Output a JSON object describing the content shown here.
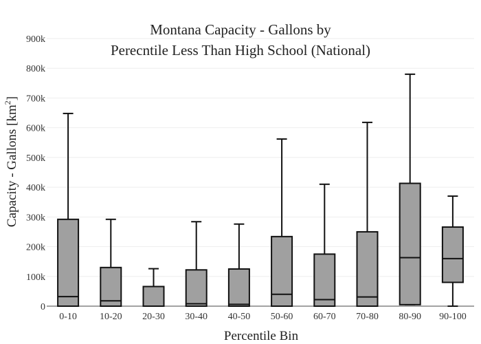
{
  "chart_data": {
    "type": "box",
    "title_lines": [
      "Montana Capacity - Gallons by",
      "Perecntile Less Than High School (National)"
    ],
    "xlabel": "Percentile Bin",
    "ylabel_main": "Capacity - Gallons  [km",
    "ylabel_sup": "2",
    "ylabel_end": "]",
    "ylim": [
      0,
      900000
    ],
    "yticks": [
      0,
      100000,
      200000,
      300000,
      400000,
      500000,
      600000,
      700000,
      800000,
      900000
    ],
    "ytick_labels": [
      "0",
      "100k",
      "200k",
      "300k",
      "400k",
      "500k",
      "600k",
      "700k",
      "800k",
      "900k"
    ],
    "grid": true,
    "box_fill": "#a0a0a0",
    "box_stroke": "#111111",
    "categories": [
      "0-10",
      "10-20",
      "20-30",
      "30-40",
      "40-50",
      "50-60",
      "60-70",
      "70-80",
      "80-90",
      "90-100"
    ],
    "boxes": [
      {
        "min": 0,
        "q1": 0,
        "median": 32000,
        "q3": 292000,
        "max": 648000
      },
      {
        "min": 0,
        "q1": 0,
        "median": 18000,
        "q3": 130000,
        "max": 292000
      },
      {
        "min": 0,
        "q1": 0,
        "median": 0,
        "q3": 66000,
        "max": 126000
      },
      {
        "min": 0,
        "q1": 0,
        "median": 8000,
        "q3": 122000,
        "max": 284000
      },
      {
        "min": 0,
        "q1": 0,
        "median": 6000,
        "q3": 125000,
        "max": 276000
      },
      {
        "min": 0,
        "q1": 0,
        "median": 40000,
        "q3": 234000,
        "max": 562000
      },
      {
        "min": 0,
        "q1": 0,
        "median": 22000,
        "q3": 175000,
        "max": 410000
      },
      {
        "min": 0,
        "q1": 0,
        "median": 31000,
        "q3": 250000,
        "max": 618000
      },
      {
        "min": 5000,
        "q1": 5000,
        "median": 163000,
        "q3": 413000,
        "max": 780000
      },
      {
        "min": 0,
        "q1": 80000,
        "median": 160000,
        "q3": 266000,
        "max": 370000
      }
    ]
  }
}
